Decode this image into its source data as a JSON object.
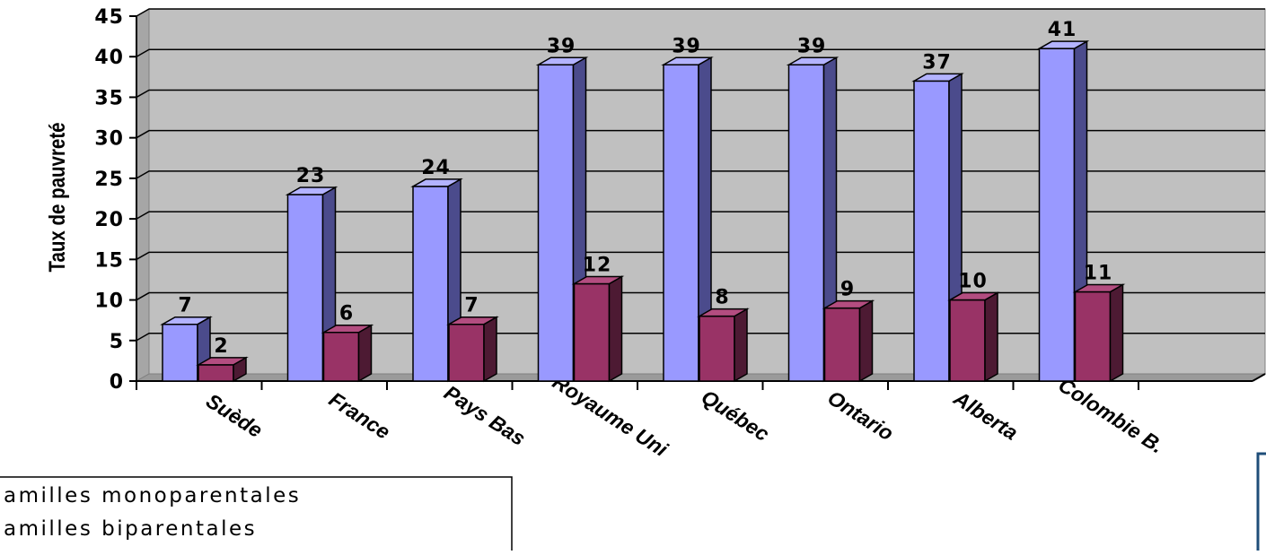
{
  "chart_data": {
    "type": "bar",
    "ylabel": "Taux de pauvreté",
    "ylim": [
      0,
      45
    ],
    "yticks": [
      0,
      5,
      10,
      15,
      20,
      25,
      30,
      35,
      40,
      45
    ],
    "grid": true,
    "categories": [
      "Suède",
      "France",
      "Pays Bas",
      "Royaume Uni",
      "Québec",
      "Ontario",
      "Alberta",
      "Colombie B."
    ],
    "series": [
      {
        "name": "amilles monoparentales",
        "values": [
          7,
          23,
          24,
          39,
          39,
          39,
          37,
          41
        ],
        "color": "#9999ff",
        "side_color": "#4b4b8c",
        "top_color": "#b3b3ff"
      },
      {
        "name": "amilles biparentales",
        "values": [
          2,
          6,
          7,
          12,
          8,
          9,
          10,
          11
        ],
        "color": "#993366",
        "side_color": "#4d1a33",
        "top_color": "#b34d80"
      }
    ],
    "legend_position": "bottom-left"
  }
}
